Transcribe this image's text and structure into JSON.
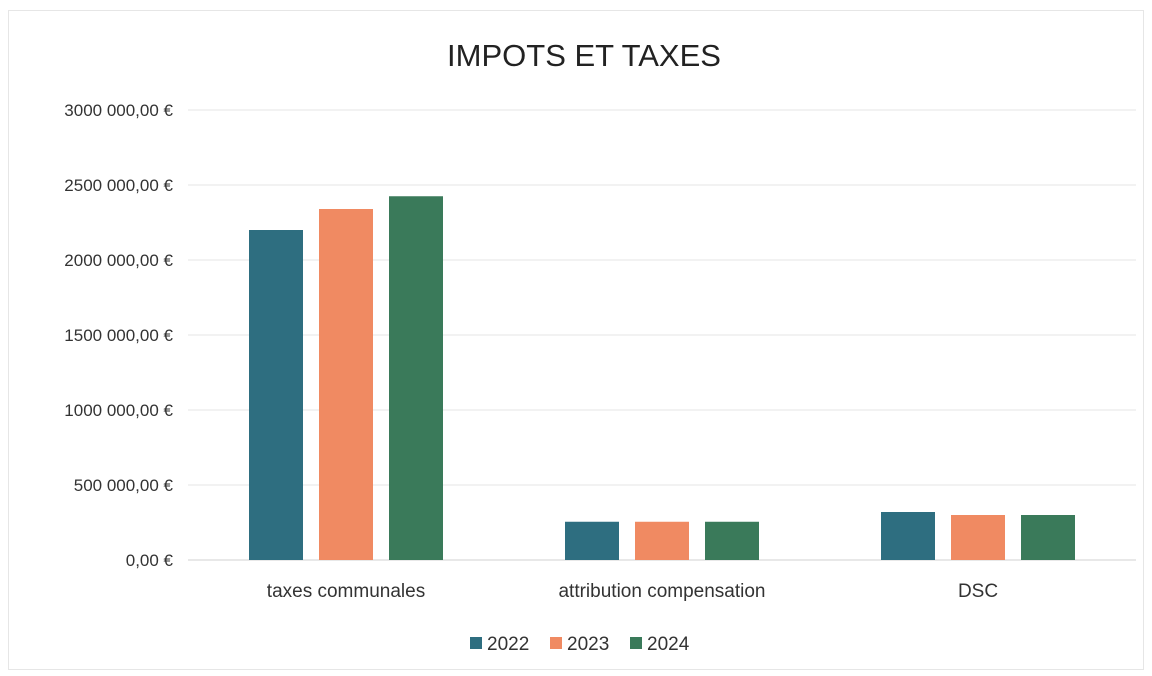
{
  "chart_data": {
    "type": "bar",
    "title": "IMPOTS ET TAXES",
    "xlabel": "",
    "ylabel": "",
    "categories": [
      "taxes communales",
      "attribution compensation",
      "DSC"
    ],
    "series": [
      {
        "name": "2022",
        "color": "#2e6e80",
        "values": [
          2200000,
          255000,
          320000
        ]
      },
      {
        "name": "2023",
        "color": "#f08a62",
        "values": [
          2340000,
          255000,
          300000
        ]
      },
      {
        "name": "2024",
        "color": "#3a7a5a",
        "values": [
          2425000,
          255000,
          300000
        ]
      }
    ],
    "ylim": [
      0,
      3000000
    ],
    "yticks": [
      {
        "value": 0,
        "label": "0,00 €"
      },
      {
        "value": 500000,
        "label": "500 000,00 €"
      },
      {
        "value": 1000000,
        "label": "1000 000,00 €"
      },
      {
        "value": 1500000,
        "label": "1500 000,00 €"
      },
      {
        "value": 2000000,
        "label": "2000 000,00 €"
      },
      {
        "value": 2500000,
        "label": "2500 000,00 €"
      },
      {
        "value": 3000000,
        "label": "3000 000,00 €"
      }
    ],
    "grid": true,
    "legend_position": "bottom"
  }
}
